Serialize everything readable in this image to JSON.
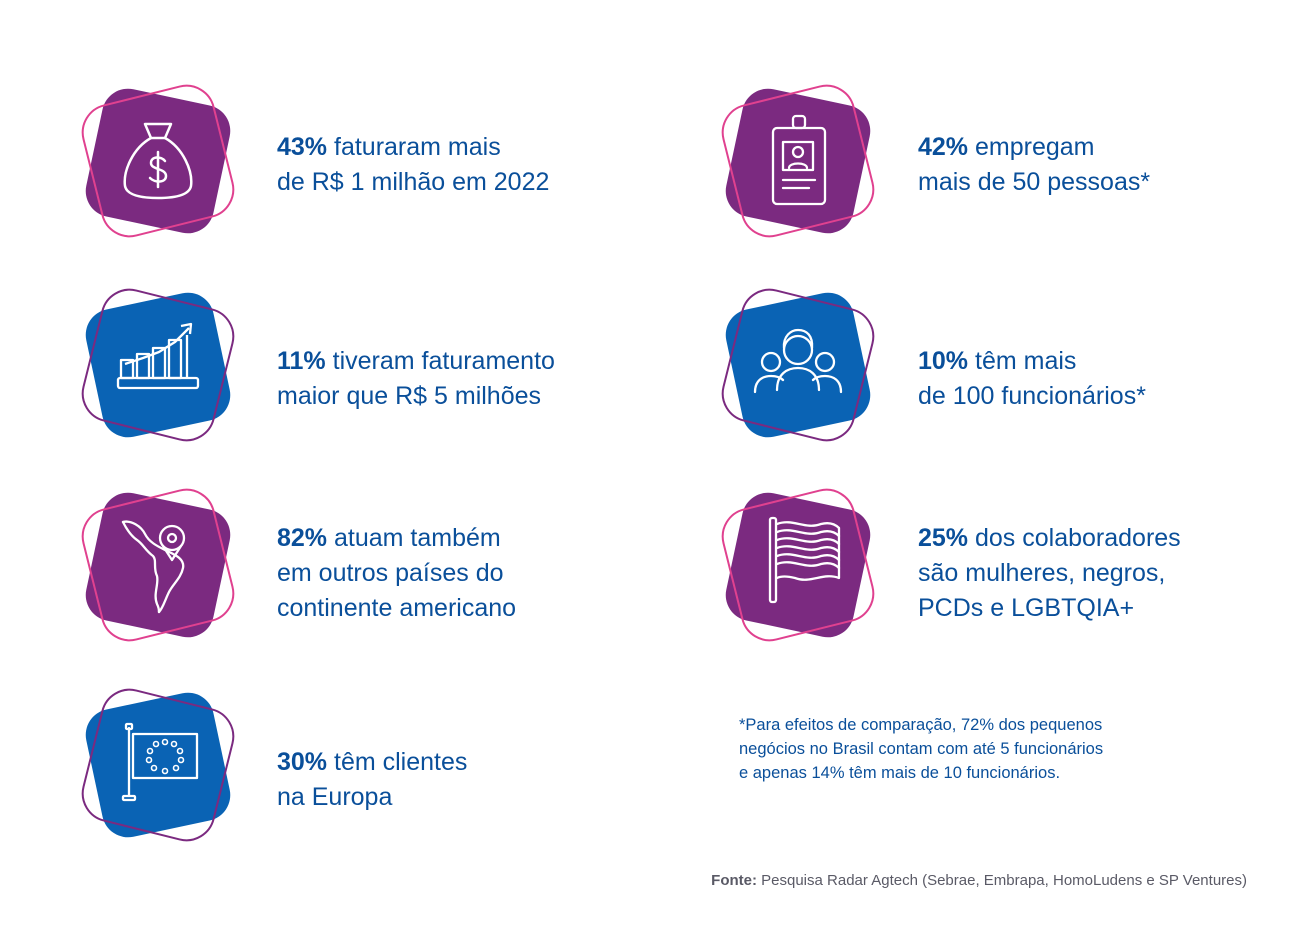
{
  "colors": {
    "purple": "#7b2a80",
    "blue": "#0a63b4",
    "pink": "#e0418f",
    "text": "#0a4f9a",
    "gray": "#5a5a66"
  },
  "stats": [
    {
      "percent": "43%",
      "line1": " faturaram mais",
      "line2": "de R$ 1 milhão em 2022",
      "line3": "",
      "icon": "money-bag-icon",
      "color": "purple"
    },
    {
      "percent": "11%",
      "line1": " tiveram faturamento",
      "line2": "maior que R$ 5 milhões",
      "line3": "",
      "icon": "growth-chart-icon",
      "color": "blue"
    },
    {
      "percent": "82%",
      "line1": " atuam também",
      "line2": "em outros países do",
      "line3": "continente americano",
      "icon": "americas-map-icon",
      "color": "purple"
    },
    {
      "percent": "30%",
      "line1": " têm clientes",
      "line2": "na Europa",
      "line3": "",
      "icon": "eu-flag-icon",
      "color": "blue"
    },
    {
      "percent": "42%",
      "line1": " empregam",
      "line2": "mais de 50 pessoas*",
      "line3": "",
      "icon": "id-badge-icon",
      "color": "purple"
    },
    {
      "percent": "10%",
      "line1": " têm mais",
      "line2": "de 100 funcionários*",
      "line3": "",
      "icon": "people-group-icon",
      "color": "blue"
    },
    {
      "percent": "25%",
      "line1": " dos colaboradores",
      "line2": "são mulheres, negros,",
      "line3": "PCDs e LGBTQIA+",
      "icon": "pride-flag-icon",
      "color": "purple"
    }
  ],
  "footnote": {
    "line1": "*Para efeitos de comparação, 72% dos pequenos",
    "line2": "negócios no Brasil contam com até 5 funcionários",
    "line3": "e apenas 14% têm mais de 10 funcionários."
  },
  "source": {
    "label": "Fonte:",
    "text": " Pesquisa Radar Agtech (Sebrae, Embrapa, HomoLudens e SP Ventures)"
  }
}
